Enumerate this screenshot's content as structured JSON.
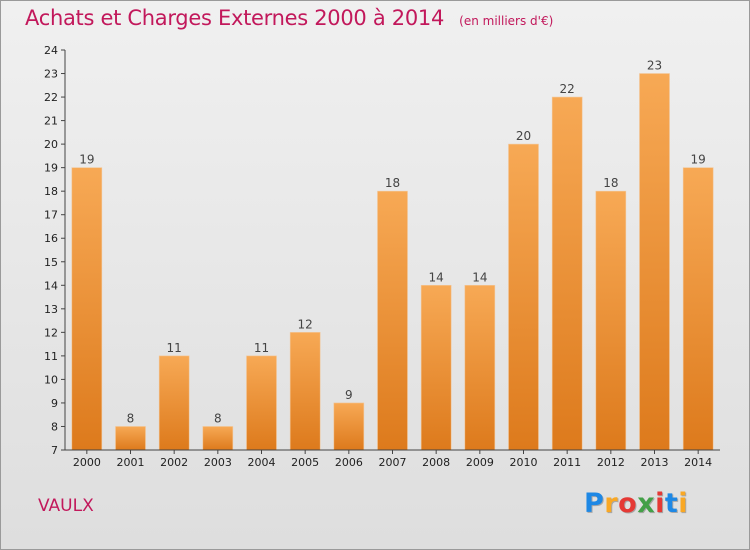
{
  "title": "Achats et Charges Externes 2000 à 2014",
  "unit": "(en milliers d'€)",
  "commune": "VAULX",
  "logo": {
    "letters": [
      "P",
      "r",
      "o",
      "x",
      "i",
      "t",
      "i"
    ],
    "colors": [
      "#1e88e5",
      "#f9a825",
      "#e53935",
      "#43a047",
      "#e53935",
      "#1e88e5",
      "#f9a825"
    ]
  },
  "colors": {
    "title": "#c2185b",
    "bar_light": "#f6a552",
    "bar_dark": "#e07c1c"
  },
  "chart_data": {
    "type": "bar",
    "title": "Achats et Charges Externes 2000 à 2014",
    "subtitle": "(en milliers d'€)",
    "xlabel": "",
    "ylabel": "",
    "categories": [
      "2000",
      "2001",
      "2002",
      "2003",
      "2004",
      "2005",
      "2006",
      "2007",
      "2008",
      "2009",
      "2010",
      "2011",
      "2012",
      "2013",
      "2014"
    ],
    "values": [
      19,
      8,
      11,
      8,
      11,
      12,
      9,
      18,
      14,
      14,
      20,
      22,
      18,
      23,
      19
    ],
    "ylim": [
      7,
      24
    ],
    "yticks": [
      7,
      8,
      9,
      10,
      11,
      12,
      13,
      14,
      15,
      16,
      17,
      18,
      19,
      20,
      21,
      22,
      23,
      24
    ],
    "grid": false,
    "data_labels": true
  }
}
